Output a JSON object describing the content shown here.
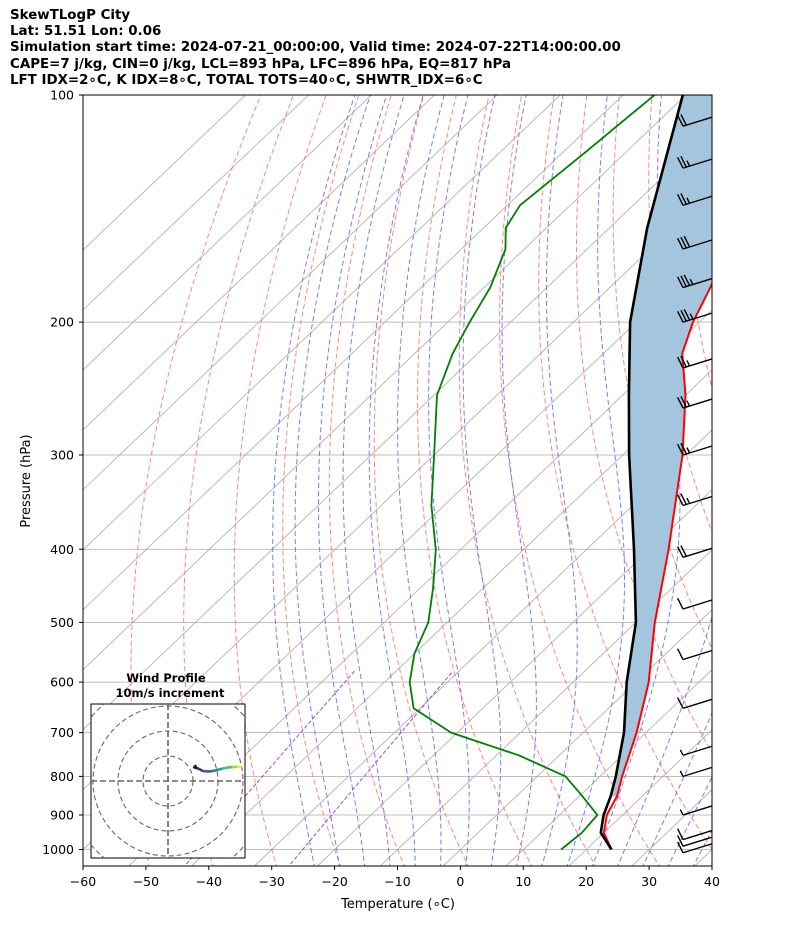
{
  "header": {
    "line1": "SkewTLogP City",
    "line2": "Lat: 51.51   Lon: 0.06",
    "line3": "Simulation start time: 2024-07-21_00:00:00, Valid time: 2024-07-22T14:00:00.00",
    "line4": "CAPE=7 j/kg, CIN=0 j/kg, LCL=893 hPa, LFC=896 hPa, EQ=817 hPa",
    "line5": "LFT IDX=2∘C, K IDX=8∘C, TOTAL TOTS=40∘C, SHWTR_IDX=6∘C"
  },
  "inset": {
    "title": "Wind Profile",
    "subtitle": "10m/s increment"
  },
  "colors": {
    "temperature": "#ff0000",
    "dewpoint": "#008000",
    "parcel": "#000000",
    "cape_fill": "#a3c6de",
    "dry_adiabats": "#ff6f6f",
    "moist_adiabats": "#6d6dff",
    "mixing_ratio": "#9a4ec8",
    "isotherms": "#aaaaaa"
  },
  "chart_data": {
    "type": "line",
    "title": "",
    "xlabel": "Temperature (∘C)",
    "ylabel": "Pressure (hPa)",
    "xlim": [
      -60,
      40
    ],
    "ylim": [
      1050,
      100
    ],
    "yscale": "log",
    "grid": true,
    "x_ticks": [
      -60,
      -50,
      -40,
      -30,
      -20,
      -10,
      0,
      10,
      20,
      30,
      40
    ],
    "y_ticks": [
      1000,
      900,
      800,
      700,
      600,
      500,
      400,
      300,
      200,
      100
    ],
    "series": [
      {
        "role": "temperature",
        "points": [
          [
            1000,
            24.0
          ],
          [
            950,
            20.0
          ],
          [
            900,
            17.5
          ],
          [
            850,
            16.0
          ],
          [
            800,
            13.5
          ],
          [
            700,
            8.5
          ],
          [
            600,
            2.0
          ],
          [
            500,
            -7.0
          ],
          [
            400,
            -17.0
          ],
          [
            300,
            -30.5
          ],
          [
            250,
            -40.0
          ],
          [
            220,
            -47.5
          ],
          [
            200,
            -51.0
          ],
          [
            180,
            -54.0
          ],
          [
            160,
            -57.5
          ],
          [
            140,
            -60.5
          ],
          [
            120,
            -62.5
          ],
          [
            110,
            -63.5
          ],
          [
            100,
            -64.0
          ]
        ]
      },
      {
        "role": "dewpoint",
        "points": [
          [
            1000,
            16.0
          ],
          [
            950,
            16.5
          ],
          [
            900,
            16.0
          ],
          [
            850,
            10.5
          ],
          [
            800,
            4.5
          ],
          [
            750,
            -6.5
          ],
          [
            700,
            -21.0
          ],
          [
            650,
            -31.0
          ],
          [
            600,
            -36.0
          ],
          [
            550,
            -40.0
          ],
          [
            500,
            -43.0
          ],
          [
            450,
            -48.0
          ],
          [
            400,
            -54.0
          ],
          [
            350,
            -62.0
          ],
          [
            300,
            -70.0
          ],
          [
            250,
            -79.5
          ],
          [
            220,
            -84.0
          ],
          [
            200,
            -86.5
          ],
          [
            180,
            -89.0
          ],
          [
            160,
            -93.0
          ],
          [
            150,
            -96.5
          ],
          [
            140,
            -98.0
          ],
          [
            120,
            -96.5
          ],
          [
            100,
            -95.0
          ]
        ]
      },
      {
        "role": "parcel",
        "points": [
          [
            1000,
            24.0
          ],
          [
            950,
            19.5
          ],
          [
            900,
            17.0
          ],
          [
            850,
            15.0
          ],
          [
            800,
            12.5
          ],
          [
            700,
            6.5
          ],
          [
            600,
            -1.5
          ],
          [
            500,
            -10.0
          ],
          [
            400,
            -22.5
          ],
          [
            300,
            -39.0
          ],
          [
            250,
            -49.0
          ],
          [
            200,
            -61.0
          ],
          [
            150,
            -74.0
          ],
          [
            100,
            -90.5
          ]
        ]
      }
    ],
    "wind_barbs": [
      {
        "p": 1010,
        "speed_kt": 10
      },
      {
        "p": 990,
        "speed_kt": 10
      },
      {
        "p": 970,
        "speed_kt": 10
      },
      {
        "p": 900,
        "speed_kt": 5
      },
      {
        "p": 800,
        "speed_kt": 5
      },
      {
        "p": 750,
        "speed_kt": 5
      },
      {
        "p": 650,
        "speed_kt": 10
      },
      {
        "p": 560,
        "speed_kt": 10
      },
      {
        "p": 480,
        "speed_kt": 10
      },
      {
        "p": 410,
        "speed_kt": 20
      },
      {
        "p": 350,
        "speed_kt": 25
      },
      {
        "p": 300,
        "speed_kt": 25
      },
      {
        "p": 260,
        "speed_kt": 25
      },
      {
        "p": 230,
        "speed_kt": 25
      },
      {
        "p": 200,
        "speed_kt": 35
      },
      {
        "p": 180,
        "speed_kt": 35
      },
      {
        "p": 160,
        "speed_kt": 30
      },
      {
        "p": 140,
        "speed_kt": 25
      },
      {
        "p": 125,
        "speed_kt": 25
      },
      {
        "p": 110,
        "speed_kt": 20
      }
    ],
    "hodograph": {
      "ring_increment_ms": 10,
      "rings": 3,
      "points": [
        [
          11.0,
          6.0
        ],
        [
          10.5,
          5.5
        ],
        [
          12.0,
          5.0
        ],
        [
          14.0,
          4.0
        ],
        [
          16.0,
          3.8
        ],
        [
          18.0,
          4.0
        ],
        [
          20.0,
          4.5
        ],
        [
          22.0,
          5.0
        ],
        [
          24.0,
          5.4
        ],
        [
          26.0,
          5.6
        ],
        [
          28.0,
          5.7
        ],
        [
          29.0,
          5.5
        ]
      ]
    }
  }
}
